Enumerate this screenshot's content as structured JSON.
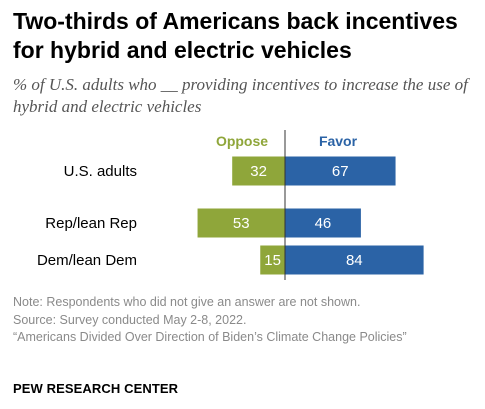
{
  "title": "Two-thirds of Americans back incentives for hybrid and electric vehicles",
  "subtitle": "% of U.S. adults who __ providing incentives to increase the use of hybrid and electric vehicles",
  "colors": {
    "oppose": "#8fa63a",
    "favor": "#2b63a6",
    "divider": "#333333"
  },
  "chart_data": {
    "type": "bar",
    "orientation": "horizontal-diverging",
    "categories": [
      "U.S. adults",
      "Rep/lean Rep",
      "Dem/lean Dem"
    ],
    "series": [
      {
        "name": "Oppose",
        "values": [
          32,
          53,
          15
        ]
      },
      {
        "name": "Favor",
        "values": [
          67,
          46,
          84
        ]
      }
    ],
    "title": "Two-thirds of Americans back incentives for hybrid and electric vehicles",
    "legend": "top, above bars"
  },
  "notes": {
    "note": "Note: Respondents who did not give an answer are not shown.",
    "source": "Source: Survey conducted May 2-8, 2022.",
    "report": "“Americans Divided Over Direction of Biden’s Climate Change Policies”"
  },
  "org": "PEW RESEARCH CENTER"
}
